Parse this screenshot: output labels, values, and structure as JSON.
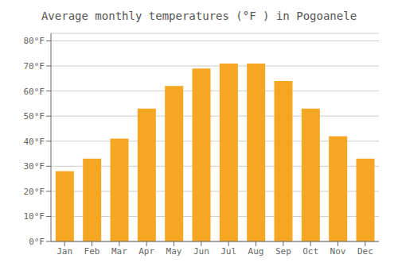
{
  "chart_data": {
    "type": "bar",
    "title": "Average monthly temperatures (°F ) in Pogoanele",
    "categories": [
      "Jan",
      "Feb",
      "Mar",
      "Apr",
      "May",
      "Jun",
      "Jul",
      "Aug",
      "Sep",
      "Oct",
      "Nov",
      "Dec"
    ],
    "values": [
      28,
      33,
      41,
      53,
      62,
      69,
      71,
      71,
      64,
      53,
      42,
      33
    ],
    "color": "#F5A623",
    "ylim": [
      0,
      83
    ],
    "yticks": [
      {
        "value": 0,
        "label": "0°F"
      },
      {
        "value": 10,
        "label": "10°F"
      },
      {
        "value": 20,
        "label": "20°F"
      },
      {
        "value": 30,
        "label": "30°F"
      },
      {
        "value": 40,
        "label": "40°F"
      },
      {
        "value": 50,
        "label": "50°F"
      },
      {
        "value": 60,
        "label": "60°F"
      },
      {
        "value": 70,
        "label": "70°F"
      },
      {
        "value": 80,
        "label": "80°F"
      }
    ],
    "grid": true
  }
}
